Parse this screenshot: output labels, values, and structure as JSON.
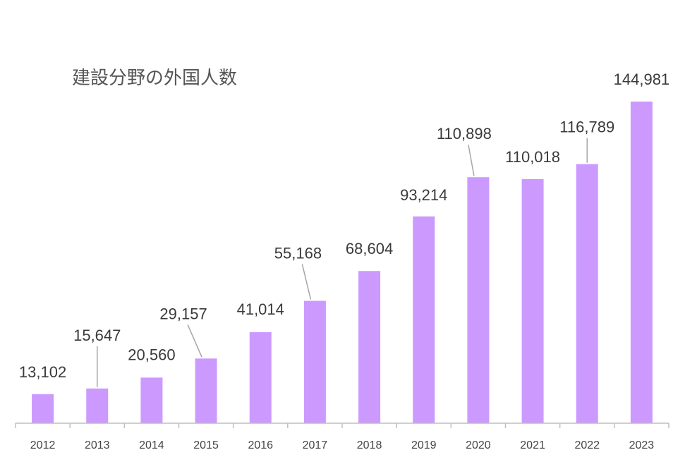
{
  "chart_data": {
    "type": "bar",
    "title": "建設分野の外国人数",
    "categories": [
      "2012",
      "2013",
      "2014",
      "2015",
      "2016",
      "2017",
      "2018",
      "2019",
      "2020",
      "2021",
      "2022",
      "2023"
    ],
    "values": [
      13102,
      15647,
      20560,
      29157,
      41014,
      55168,
      68604,
      93214,
      110898,
      110018,
      116789,
      144981
    ],
    "data_labels": [
      "13,102",
      "15,647",
      "20,560",
      "29,157",
      "41,014",
      "55,168",
      "68,604",
      "93,214",
      "110,898",
      "110,018",
      "116,789",
      "144,981"
    ],
    "xlabel": "",
    "ylabel": "",
    "ylim": [
      0,
      160000
    ],
    "grid": false,
    "bar_color": "#cc99ff",
    "axis_color": "#bfbfbf",
    "leader_line_color": "#a6a6a6"
  }
}
